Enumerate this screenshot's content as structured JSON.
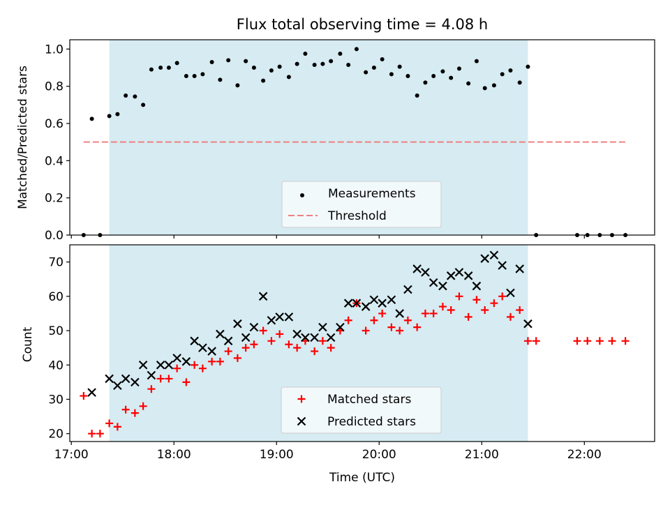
{
  "colors": {
    "shade": "#add8e6",
    "points": "#000000",
    "threshold": "#f08080",
    "matched": "#ff0000",
    "predicted": "#000000",
    "legend_bg": "#f7fbfd"
  },
  "chart_data": [
    {
      "type": "scatter",
      "title": "Flux total observing time = 4.08 h",
      "xlabel": "",
      "ylabel": "Matched/Predicted stars",
      "xlim": [
        16.985,
        22.685
      ],
      "ylim": [
        0.0,
        1.05
      ],
      "x_ticks": [
        17,
        18,
        19,
        20,
        21,
        22
      ],
      "y_ticks": [
        0.0,
        0.2,
        0.4,
        0.6,
        0.8,
        1.0
      ],
      "y_tick_labels": [
        "0.0",
        "0.2",
        "0.4",
        "0.6",
        "0.8",
        "1.0"
      ],
      "shaded_x_range": [
        17.37,
        21.45
      ],
      "legend": {
        "position": "bottom-center",
        "entries": [
          "Measurements",
          "Threshold"
        ]
      },
      "series": [
        {
          "name": "Measurements",
          "marker": "dot",
          "points": [
            [
              17.12,
              0.0
            ],
            [
              17.2,
              0.625
            ],
            [
              17.28,
              0.0
            ],
            [
              17.37,
              0.64
            ],
            [
              17.45,
              0.65
            ],
            [
              17.53,
              0.75
            ],
            [
              17.62,
              0.745
            ],
            [
              17.7,
              0.7
            ],
            [
              17.78,
              0.89
            ],
            [
              17.87,
              0.9
            ],
            [
              17.95,
              0.9
            ],
            [
              18.03,
              0.925
            ],
            [
              18.12,
              0.855
            ],
            [
              18.2,
              0.855
            ],
            [
              18.28,
              0.865
            ],
            [
              18.37,
              0.93
            ],
            [
              18.45,
              0.835
            ],
            [
              18.53,
              0.94
            ],
            [
              18.62,
              0.805
            ],
            [
              18.7,
              0.935
            ],
            [
              18.78,
              0.9
            ],
            [
              18.87,
              0.83
            ],
            [
              18.95,
              0.885
            ],
            [
              19.03,
              0.905
            ],
            [
              19.12,
              0.85
            ],
            [
              19.2,
              0.92
            ],
            [
              19.28,
              0.975
            ],
            [
              19.37,
              0.915
            ],
            [
              19.45,
              0.92
            ],
            [
              19.53,
              0.935
            ],
            [
              19.62,
              0.975
            ],
            [
              19.7,
              0.915
            ],
            [
              19.78,
              1.0
            ],
            [
              19.87,
              0.875
            ],
            [
              19.95,
              0.9
            ],
            [
              20.03,
              0.945
            ],
            [
              20.12,
              0.865
            ],
            [
              20.2,
              0.905
            ],
            [
              20.28,
              0.855
            ],
            [
              20.37,
              0.75
            ],
            [
              20.45,
              0.82
            ],
            [
              20.53,
              0.855
            ],
            [
              20.62,
              0.88
            ],
            [
              20.7,
              0.845
            ],
            [
              20.78,
              0.895
            ],
            [
              20.87,
              0.815
            ],
            [
              20.95,
              0.935
            ],
            [
              21.03,
              0.79
            ],
            [
              21.12,
              0.805
            ],
            [
              21.2,
              0.865
            ],
            [
              21.28,
              0.885
            ],
            [
              21.37,
              0.82
            ],
            [
              21.45,
              0.905
            ],
            [
              21.53,
              0.0
            ],
            [
              21.93,
              0.0
            ],
            [
              22.03,
              0.0
            ],
            [
              22.15,
              0.0
            ],
            [
              22.27,
              0.0
            ],
            [
              22.4,
              0.0
            ]
          ]
        },
        {
          "name": "Threshold",
          "marker": "dashed-line",
          "points": [
            [
              17.12,
              0.5
            ],
            [
              22.4,
              0.5
            ]
          ]
        }
      ]
    },
    {
      "type": "scatter",
      "title": "",
      "xlabel": "Time (UTC)",
      "ylabel": "Count",
      "xlim": [
        16.985,
        22.685
      ],
      "ylim": [
        17.7,
        75
      ],
      "x_ticks": [
        17,
        18,
        19,
        20,
        21,
        22
      ],
      "x_tick_labels": [
        "17:00",
        "18:00",
        "19:00",
        "20:00",
        "21:00",
        "22:00"
      ],
      "y_ticks": [
        20,
        30,
        40,
        50,
        60,
        70
      ],
      "y_tick_labels": [
        "20",
        "30",
        "40",
        "50",
        "60",
        "70"
      ],
      "shaded_x_range": [
        17.37,
        21.45
      ],
      "legend": {
        "position": "bottom-center",
        "entries": [
          "Matched stars",
          "Predicted stars"
        ]
      },
      "series": [
        {
          "name": "Matched stars",
          "marker": "plus",
          "points": [
            [
              17.12,
              31
            ],
            [
              17.2,
              20
            ],
            [
              17.28,
              20
            ],
            [
              17.37,
              23
            ],
            [
              17.45,
              22
            ],
            [
              17.53,
              27
            ],
            [
              17.62,
              26
            ],
            [
              17.7,
              28
            ],
            [
              17.78,
              33
            ],
            [
              17.87,
              36
            ],
            [
              17.95,
              36
            ],
            [
              18.03,
              39
            ],
            [
              18.12,
              35
            ],
            [
              18.2,
              40
            ],
            [
              18.28,
              39
            ],
            [
              18.37,
              41
            ],
            [
              18.45,
              41
            ],
            [
              18.53,
              44
            ],
            [
              18.62,
              42
            ],
            [
              18.7,
              45
            ],
            [
              18.78,
              46
            ],
            [
              18.87,
              50
            ],
            [
              18.95,
              47
            ],
            [
              19.03,
              49
            ],
            [
              19.12,
              46
            ],
            [
              19.2,
              45
            ],
            [
              19.28,
              47
            ],
            [
              19.37,
              44
            ],
            [
              19.45,
              47
            ],
            [
              19.53,
              45
            ],
            [
              19.62,
              50
            ],
            [
              19.7,
              53
            ],
            [
              19.78,
              58
            ],
            [
              19.87,
              50
            ],
            [
              19.95,
              53
            ],
            [
              20.03,
              55
            ],
            [
              20.12,
              51
            ],
            [
              20.2,
              50
            ],
            [
              20.28,
              53
            ],
            [
              20.37,
              51
            ],
            [
              20.45,
              55
            ],
            [
              20.53,
              55
            ],
            [
              20.62,
              57
            ],
            [
              20.7,
              56
            ],
            [
              20.78,
              60
            ],
            [
              20.87,
              54
            ],
            [
              20.95,
              59
            ],
            [
              21.03,
              56
            ],
            [
              21.12,
              58
            ],
            [
              21.2,
              60
            ],
            [
              21.28,
              54
            ],
            [
              21.37,
              56
            ],
            [
              21.45,
              47
            ],
            [
              21.53,
              47
            ],
            [
              21.93,
              47
            ],
            [
              22.03,
              47
            ],
            [
              22.15,
              47
            ],
            [
              22.27,
              47
            ],
            [
              22.4,
              47
            ]
          ]
        },
        {
          "name": "Predicted stars",
          "marker": "x",
          "points": [
            [
              17.2,
              32
            ],
            [
              17.37,
              36
            ],
            [
              17.45,
              34
            ],
            [
              17.53,
              36
            ],
            [
              17.62,
              35
            ],
            [
              17.7,
              40
            ],
            [
              17.78,
              37
            ],
            [
              17.87,
              40
            ],
            [
              17.95,
              40
            ],
            [
              18.03,
              42
            ],
            [
              18.12,
              41
            ],
            [
              18.2,
              47
            ],
            [
              18.28,
              45
            ],
            [
              18.37,
              44
            ],
            [
              18.45,
              49
            ],
            [
              18.53,
              47
            ],
            [
              18.62,
              52
            ],
            [
              18.7,
              48
            ],
            [
              18.78,
              51
            ],
            [
              18.87,
              60
            ],
            [
              18.95,
              53
            ],
            [
              19.03,
              54
            ],
            [
              19.12,
              54
            ],
            [
              19.2,
              49
            ],
            [
              19.28,
              48
            ],
            [
              19.37,
              48
            ],
            [
              19.45,
              51
            ],
            [
              19.53,
              48
            ],
            [
              19.62,
              51
            ],
            [
              19.7,
              58
            ],
            [
              19.78,
              58
            ],
            [
              19.87,
              57
            ],
            [
              19.95,
              59
            ],
            [
              20.03,
              58
            ],
            [
              20.12,
              59
            ],
            [
              20.2,
              55
            ],
            [
              20.28,
              62
            ],
            [
              20.37,
              68
            ],
            [
              20.45,
              67
            ],
            [
              20.53,
              64
            ],
            [
              20.62,
              63
            ],
            [
              20.7,
              66
            ],
            [
              20.78,
              67
            ],
            [
              20.87,
              66
            ],
            [
              20.95,
              63
            ],
            [
              21.03,
              71
            ],
            [
              21.12,
              72
            ],
            [
              21.2,
              69
            ],
            [
              21.28,
              61
            ],
            [
              21.37,
              68
            ],
            [
              21.45,
              52
            ]
          ]
        }
      ]
    }
  ]
}
